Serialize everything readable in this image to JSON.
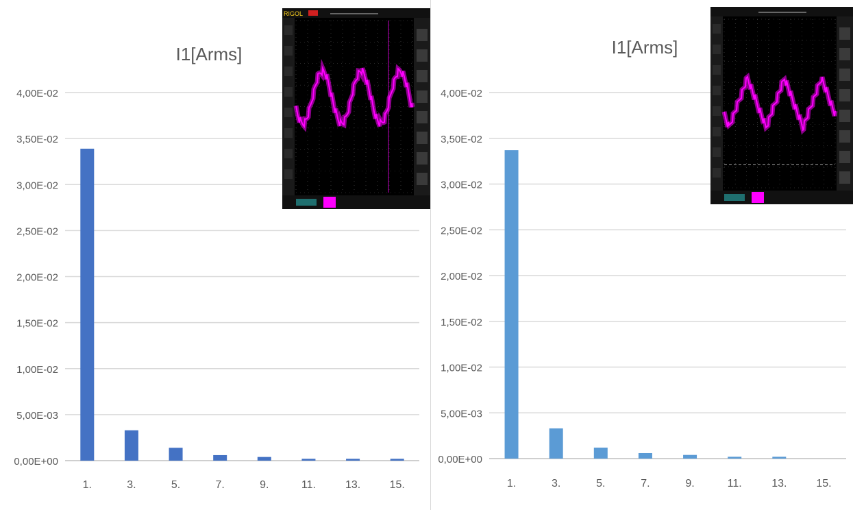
{
  "chart_data": [
    {
      "type": "bar",
      "title": "I1[Arms]",
      "categories": [
        "1.",
        "3.",
        "5.",
        "7.",
        "9.",
        "11.",
        "13.",
        "15."
      ],
      "values": [
        0.0339,
        0.0033,
        0.0014,
        0.0006,
        0.0004,
        0.0002,
        0.0002,
        0.0002
      ],
      "ylim": [
        0,
        0.04
      ],
      "yticks": [
        "0,00E+00",
        "5,00E-03",
        "1,00E-02",
        "1,50E-02",
        "2,00E-02",
        "2,50E-02",
        "3,00E-02",
        "3,50E-02",
        "4,00E-02"
      ],
      "grid": true,
      "color": "#4472c4"
    },
    {
      "type": "bar",
      "title": "I1[Arms]",
      "categories": [
        "1.",
        "3.",
        "5.",
        "7.",
        "9.",
        "11.",
        "13.",
        "15."
      ],
      "values": [
        0.0337,
        0.0033,
        0.0012,
        0.0006,
        0.0004,
        0.0002,
        0.0002,
        0.0
      ],
      "ylim": [
        0,
        0.04
      ],
      "yticks": [
        "0,00E+00",
        "5,00E-03",
        "1,00E-02",
        "1,50E-02",
        "2,00E-02",
        "2,50E-02",
        "3,00E-02",
        "3,50E-02",
        "4,00E-02"
      ],
      "grid": true,
      "color": "#5b9bd5"
    }
  ],
  "insets": [
    {
      "description_icon": "oscilloscope-screenshot-icon",
      "trace_color": "#ff00ff",
      "label_text": "RIGOL"
    },
    {
      "description_icon": "oscilloscope-screenshot-icon",
      "trace_color": "#ff00ff"
    }
  ]
}
